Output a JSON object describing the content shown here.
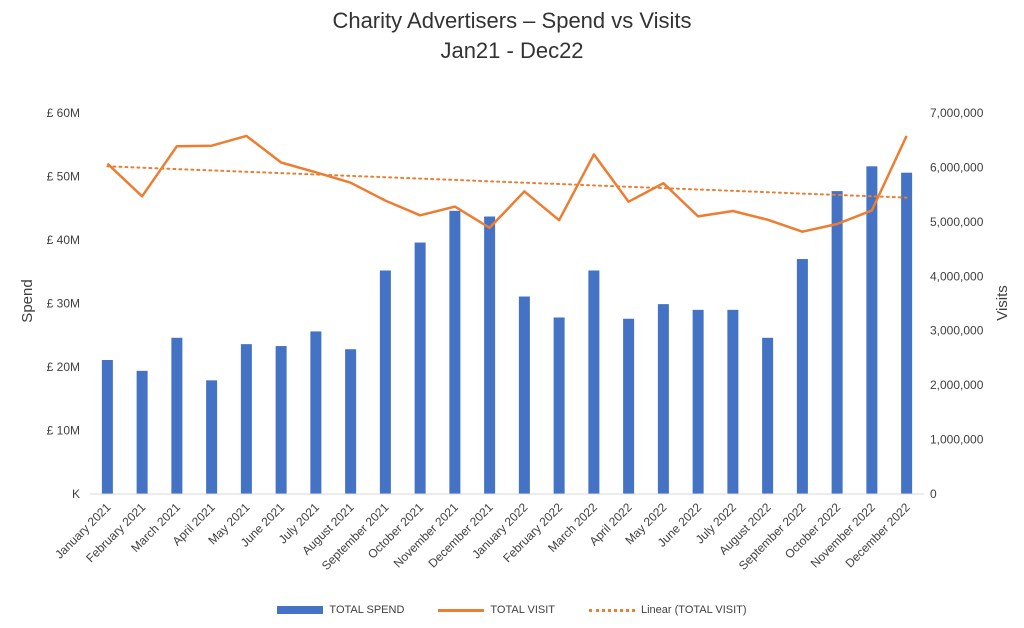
{
  "title": "Charity Advertisers – Spend vs Visits",
  "subtitle": "Jan21 - Dec22",
  "colors": {
    "spend": "#4472C4",
    "visits": "#ED7D31"
  },
  "chart_data": {
    "type": "bar",
    "title": "Charity Advertisers – Spend vs Visits",
    "subtitle": "Jan21 - Dec22",
    "categories": [
      "January 2021",
      "February 2021",
      "March 2021",
      "April 2021",
      "May 2021",
      "June 2021",
      "July 2021",
      "August 2021",
      "September 2021",
      "October 2021",
      "November 2021",
      "December 2021",
      "January 2022",
      "February 2022",
      "March 2022",
      "April 2022",
      "May 2022",
      "June 2022",
      "July 2022",
      "August 2022",
      "September 2022",
      "October 2022",
      "November 2022",
      "December 2022"
    ],
    "series": [
      {
        "name": "TOTAL SPEND",
        "type": "bar",
        "axis": "left",
        "values": [
          21.1,
          19.4,
          24.6,
          17.9,
          23.6,
          23.3,
          25.6,
          22.8,
          35.2,
          39.6,
          44.6,
          43.7,
          31.1,
          27.8,
          35.2,
          27.6,
          29.9,
          29.0,
          29.0,
          24.6,
          37.0,
          47.7,
          51.6,
          50.6
        ]
      },
      {
        "name": "TOTAL VISIT",
        "type": "line",
        "axis": "right",
        "values": [
          6070000,
          5470000,
          6390000,
          6400000,
          6580000,
          6090000,
          5910000,
          5720000,
          5390000,
          5120000,
          5280000,
          4890000,
          5560000,
          5030000,
          6240000,
          5370000,
          5710000,
          5100000,
          5200000,
          5040000,
          4820000,
          4960000,
          5210000,
          6580000
        ]
      },
      {
        "name": "Linear (TOTAL VISIT)",
        "type": "trendline",
        "axis": "right",
        "values": [
          6020000,
          5995000,
          5970000,
          5945000,
          5920000,
          5895000,
          5870000,
          5845000,
          5820000,
          5795000,
          5770000,
          5745000,
          5720000,
          5695000,
          5670000,
          5645000,
          5620000,
          5595000,
          5570000,
          5545000,
          5520000,
          5495000,
          5470000,
          5445000
        ]
      }
    ],
    "left_axis": {
      "label": "Spend",
      "ylim": [
        0,
        60
      ],
      "ticks": [
        "K",
        "£ 10M",
        "£ 20M",
        "£ 30M",
        "£ 40M",
        "£ 50M",
        "£ 60M"
      ]
    },
    "right_axis": {
      "label": "Visits",
      "ylim": [
        0,
        7000000
      ],
      "ticks": [
        "0",
        "1,000,000",
        "2,000,000",
        "3,000,000",
        "4,000,000",
        "5,000,000",
        "6,000,000",
        "7,000,000"
      ]
    },
    "grid": false,
    "legend_position": "bottom"
  }
}
